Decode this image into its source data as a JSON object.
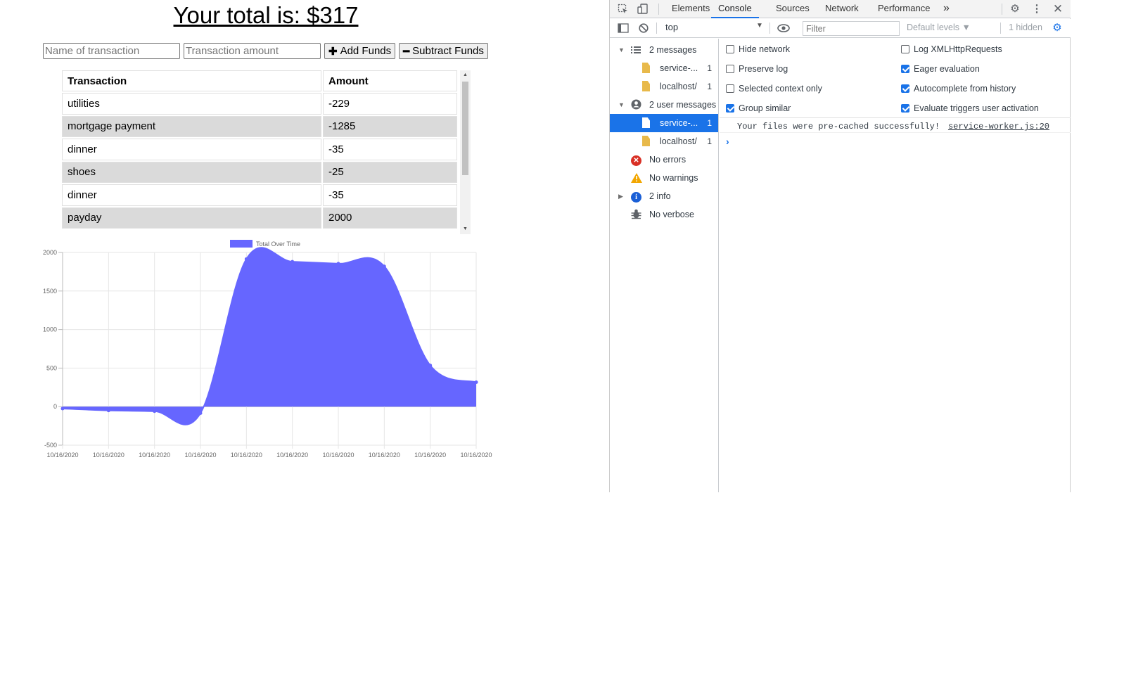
{
  "app": {
    "title": "Your total is: $317",
    "name_placeholder": "Name of transaction",
    "amount_placeholder": "Transaction amount",
    "add_label": "Add Funds",
    "subtract_label": "Subtract Funds",
    "table": {
      "headers": [
        "Transaction",
        "Amount"
      ],
      "rows": [
        {
          "name": "utilities",
          "amount": "-229"
        },
        {
          "name": "mortgage payment",
          "amount": "-1285"
        },
        {
          "name": "dinner",
          "amount": "-35"
        },
        {
          "name": "shoes",
          "amount": "-25"
        },
        {
          "name": "dinner",
          "amount": "-35"
        },
        {
          "name": "payday",
          "amount": "2000"
        }
      ]
    }
  },
  "chart_data": {
    "type": "area",
    "legend": "Total Over Time",
    "legend_position": "top",
    "x": [
      "10/16/2020",
      "10/16/2020",
      "10/16/2020",
      "10/16/2020",
      "10/16/2020",
      "10/16/2020",
      "10/16/2020",
      "10/16/2020",
      "10/16/2020",
      "10/16/2020"
    ],
    "series": [
      {
        "name": "Total Over Time",
        "values": [
          -25,
          -50,
          -60,
          -85,
          1915,
          1880,
          1855,
          1820,
          535,
          317
        ],
        "color": "#6666ff"
      }
    ],
    "ylim": [
      -500,
      2000
    ],
    "yticks": [
      -500,
      0,
      500,
      1000,
      1500,
      2000
    ],
    "grid": true
  },
  "devtools": {
    "tabs": [
      "Elements",
      "Console",
      "Sources",
      "Network",
      "Performance"
    ],
    "active_tab": "Console",
    "more_tabs": "»",
    "context": "top",
    "filter_placeholder": "Filter",
    "levels": "Default levels ▼",
    "hidden": "1 hidden",
    "sidebar": {
      "messages": {
        "label": "2 messages"
      },
      "msg_children": [
        {
          "label": "service-...",
          "count": "1"
        },
        {
          "label": "localhost/",
          "count": "1"
        }
      ],
      "user_messages": {
        "label": "2 user messages"
      },
      "user_children": [
        {
          "label": "service-...",
          "count": "1"
        },
        {
          "label": "localhost/",
          "count": "1"
        }
      ],
      "errors": "No errors",
      "warnings": "No warnings",
      "info": "2 info",
      "verbose": "No verbose"
    },
    "options": {
      "hide_network": "Hide network",
      "preserve_log": "Preserve log",
      "selected_context": "Selected context only",
      "group_similar": "Group similar",
      "log_xhr": "Log XMLHttpRequests",
      "eager_eval": "Eager evaluation",
      "autocomplete": "Autocomplete from history",
      "evaluate_triggers": "Evaluate triggers user activation"
    },
    "console_message": "Your files were pre-cached successfully!",
    "console_source": "service-worker.js:20",
    "prompt": "›"
  }
}
